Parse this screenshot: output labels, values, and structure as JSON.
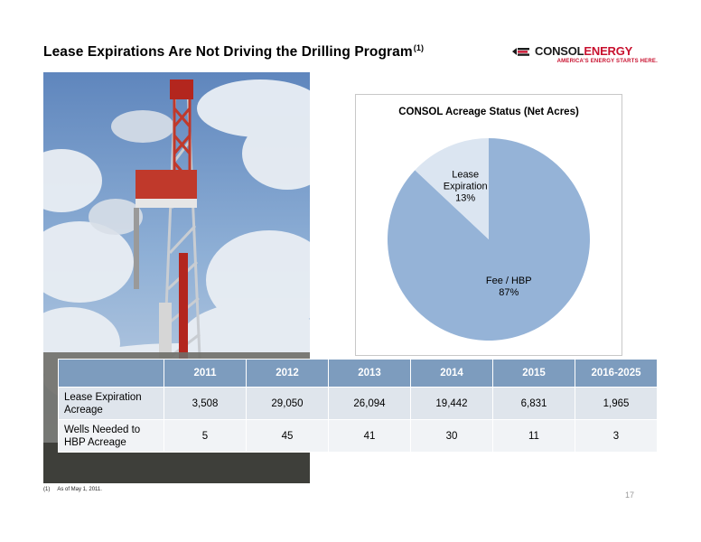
{
  "slide": {
    "title": "Lease Expirations Are Not Driving the Drilling Program",
    "title_footnote_ref": "(1)",
    "page_number": "17"
  },
  "logo": {
    "name_part1": "CONSOL",
    "name_part2": "ENERGY",
    "tagline": "AMERICA'S ENERGY STARTS HERE.",
    "icon": "consol-flame-mark-icon",
    "colors": {
      "dark": "#1a1a1a",
      "red": "#c8102e"
    }
  },
  "photo": {
    "subject": "drilling-rig-image"
  },
  "chart_data": {
    "type": "pie",
    "title": "CONSOL Acreage Status (Net Acres)",
    "slices": [
      {
        "label_line1": "Fee / HBP",
        "label_line2": "",
        "pct_text": "87%",
        "value": 87,
        "color": "#95b3d7"
      },
      {
        "label_line1": "Lease",
        "label_line2": "Expiration",
        "pct_text": "13%",
        "value": 13,
        "color": "#dbe5f1"
      }
    ]
  },
  "table": {
    "columns": [
      "",
      "2011",
      "2012",
      "2013",
      "2014",
      "2015",
      "2016-2025"
    ],
    "rows": [
      {
        "label_line1": "Lease Expiration",
        "label_line2": "Acreage",
        "values": [
          "3,508",
          "29,050",
          "26,094",
          "19,442",
          "6,831",
          "1,965"
        ]
      },
      {
        "label_line1": "Wells Needed to",
        "label_line2": "HBP Acreage",
        "values": [
          "5",
          "45",
          "41",
          "30",
          "11",
          "3"
        ]
      }
    ]
  },
  "footnote": {
    "num": "(1)",
    "text": "As of May 1, 2011."
  },
  "colors": {
    "table_header": "#7d9cbe",
    "row1": "#dfe5ec",
    "row2": "#f1f3f6"
  }
}
